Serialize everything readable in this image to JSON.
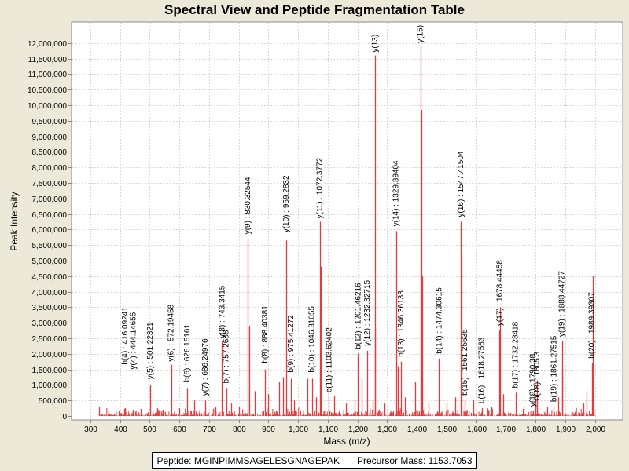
{
  "chart_data": {
    "type": "bar",
    "title": "Spectral View and Peptide Fragmentation Table",
    "xlabel": "Mass (m/z)",
    "ylabel": "Peak Intensity",
    "xlim": [
      255,
      2075
    ],
    "ylim": [
      0,
      12600000
    ],
    "xticks": [
      300,
      400,
      500,
      600,
      700,
      800,
      900,
      1000,
      1100,
      1200,
      1300,
      1400,
      1500,
      1600,
      1700,
      1800,
      1900,
      2000
    ],
    "xtick_labels": [
      "300",
      "400",
      "500",
      "600",
      "700",
      "800",
      "900",
      "1,000",
      "1,100",
      "1,200",
      "1,300",
      "1,400",
      "1,500",
      "1,600",
      "1,700",
      "1,800",
      "1,900",
      "2,000"
    ],
    "yticks": [
      0,
      500000,
      1000000,
      1500000,
      2000000,
      2500000,
      3000000,
      3500000,
      4000000,
      4500000,
      5000000,
      5500000,
      6000000,
      6500000,
      7000000,
      7500000,
      8000000,
      8500000,
      9000000,
      9500000,
      10000000,
      10500000,
      11000000,
      11500000,
      12000000
    ],
    "ytick_labels": [
      "0",
      "500,000",
      "1,000,000",
      "1,500,000",
      "2,000,000",
      "2,500,000",
      "3,000,000",
      "3,500,000",
      "4,000,000",
      "4,500,000",
      "5,000,000",
      "5,500,000",
      "6,000,000",
      "6,500,000",
      "7,000,000",
      "7,500,000",
      "8,000,000",
      "8,500,000",
      "9,000,000",
      "9,500,000",
      "10,000,000",
      "10,500,000",
      "11,000,000",
      "11,500,000",
      "12,000,000"
    ],
    "grid": true,
    "peak_color": "#e8393b",
    "peaks": [
      [
        328,
        300000
      ],
      [
        360,
        180000
      ],
      [
        395,
        150000
      ],
      [
        416.09,
        250000
      ],
      [
        444.15,
        200000
      ],
      [
        470,
        230000
      ],
      [
        501.22,
        1000000
      ],
      [
        525,
        250000
      ],
      [
        545,
        200000
      ],
      [
        572.19,
        1650000
      ],
      [
        600,
        250000
      ],
      [
        626.15,
        900000
      ],
      [
        650,
        500000
      ],
      [
        686.25,
        500000
      ],
      [
        720,
        300000
      ],
      [
        743.34,
        2400000
      ],
      [
        757.27,
        900000
      ],
      [
        775,
        400000
      ],
      [
        800,
        300000
      ],
      [
        830.33,
        5700000
      ],
      [
        835,
        2900000
      ],
      [
        855,
        800000
      ],
      [
        888.4,
        1500000
      ],
      [
        900,
        700000
      ],
      [
        935,
        1100000
      ],
      [
        948,
        1250000
      ],
      [
        959.28,
        5650000
      ],
      [
        975.41,
        1200000
      ],
      [
        985,
        500000
      ],
      [
        1030,
        1200000
      ],
      [
        1046.31,
        1200000
      ],
      [
        1060,
        600000
      ],
      [
        1072.38,
        6250000
      ],
      [
        1075,
        4800000
      ],
      [
        1103.62,
        600000
      ],
      [
        1120,
        650000
      ],
      [
        1160,
        400000
      ],
      [
        1190,
        500000
      ],
      [
        1201.46,
        2000000
      ],
      [
        1215,
        1200000
      ],
      [
        1232.33,
        2100000
      ],
      [
        1250,
        500000
      ],
      [
        1258.5,
        11600000
      ],
      [
        1260,
        2800000
      ],
      [
        1290,
        400000
      ],
      [
        1329.39,
        5950000
      ],
      [
        1335,
        1600000
      ],
      [
        1346.36,
        1750000
      ],
      [
        1360,
        600000
      ],
      [
        1395,
        1100000
      ],
      [
        1412,
        11900000
      ],
      [
        1415,
        9850000
      ],
      [
        1418,
        4500000
      ],
      [
        1440,
        400000
      ],
      [
        1474.31,
        1850000
      ],
      [
        1500,
        400000
      ],
      [
        1530,
        600000
      ],
      [
        1547.42,
        6250000
      ],
      [
        1550,
        5200000
      ],
      [
        1561.26,
        500000
      ],
      [
        1590,
        500000
      ],
      [
        1618.28,
        250000
      ],
      [
        1650,
        300000
      ],
      [
        1678.44,
        2750000
      ],
      [
        1680,
        3500000
      ],
      [
        1690,
        700000
      ],
      [
        1732.28,
        750000
      ],
      [
        1760,
        300000
      ],
      [
        1790.38,
        150000
      ],
      [
        1800,
        500000
      ],
      [
        1804,
        1150000
      ],
      [
        1840,
        300000
      ],
      [
        1861.28,
        300000
      ],
      [
        1875,
        600000
      ],
      [
        1888.45,
        2400000
      ],
      [
        1890,
        1500000
      ],
      [
        1960,
        400000
      ],
      [
        1972,
        800000
      ],
      [
        1989.39,
        1700000
      ],
      [
        1993,
        4500000
      ]
    ],
    "annotations": [
      {
        "mz": 416.09241,
        "label": "b(4) : 416.09241",
        "top": 1550000
      },
      {
        "mz": 444.14655,
        "label": "y(4) : 444.14655",
        "top": 1400000
      },
      {
        "mz": 501.22321,
        "label": "y(5) : 501.22321",
        "top": 1080000
      },
      {
        "mz": 572.19458,
        "label": "y(6) : 572.19458",
        "top": 1650000
      },
      {
        "mz": 626.15161,
        "label": "b(6) : 626.15161",
        "top": 1000000
      },
      {
        "mz": 686.24976,
        "label": "y(7) : 686.24976",
        "top": 550000
      },
      {
        "mz": 743.3415,
        "label": "y(8) : 743.3415",
        "top": 2400000
      },
      {
        "mz": 757.2688,
        "label": "b(7) : 757.2688",
        "top": 950000
      },
      {
        "mz": 830.32544,
        "label": "y(9) : 830.32544",
        "top": 5750000
      },
      {
        "mz": 888.40381,
        "label": "b(8) : 888.40381",
        "top": 1600000
      },
      {
        "mz": 959.2832,
        "label": "y(10) : 959.2832",
        "top": 5800000
      },
      {
        "mz": 975.41272,
        "label": "b(9) : 975.41272",
        "top": 1300000
      },
      {
        "mz": 1046.31055,
        "label": "b(10) : 1046.31055",
        "top": 1300000
      },
      {
        "mz": 1072.3772,
        "label": "y(11) : 1072.3772",
        "top": 6250000
      },
      {
        "mz": 1103.62402,
        "label": "b(11) : 1103.62402",
        "top": 650000
      },
      {
        "mz": 1201.46216,
        "label": "b(12) : 1201.46216",
        "top": 2050000
      },
      {
        "mz": 1232.32715,
        "label": "y(12) : 1232.32715",
        "top": 2150000
      },
      {
        "mz": 1258.5,
        "label": "y(13) :",
        "top": 11600000
      },
      {
        "mz": 1329.39404,
        "label": "y(14) : 1329.39404",
        "top": 6000000
      },
      {
        "mz": 1346.36133,
        "label": "b(13) : 1346.36133",
        "top": 1800000
      },
      {
        "mz": 1412.0,
        "label": "y(15)",
        "top": 11900000
      },
      {
        "mz": 1474.30615,
        "label": "b(14) : 1474.30615",
        "top": 1900000
      },
      {
        "mz": 1547.41504,
        "label": "y(16) : 1547.41504",
        "top": 6300000
      },
      {
        "mz": 1561.25635,
        "label": "b(15) : 1561.25635",
        "top": 560000
      },
      {
        "mz": 1618.27563,
        "label": "b(16) : 1618.27563",
        "top": 300000
      },
      {
        "mz": 1678.44458,
        "label": "y(17) : 1678.44458",
        "top": 2800000
      },
      {
        "mz": 1732.28418,
        "label": "b(17) : 1732.28418",
        "top": 800000
      },
      {
        "mz": 1790.38,
        "label": "y(18) : 1790.38",
        "top": 200000
      },
      {
        "mz": 1805.3,
        "label": "b(18) : 1805.3",
        "top": 400000
      },
      {
        "mz": 1861.27515,
        "label": "b(19) : 1861.27515",
        "top": 350000
      },
      {
        "mz": 1888.44727,
        "label": "y(19) : 1888.44727",
        "top": 2450000
      },
      {
        "mz": 1989.39307,
        "label": "b(20) : 1989.39307",
        "top": 1750000
      }
    ]
  },
  "footer": {
    "peptide": "Peptide: MGINPIMMSAGELESGNAGEPAK",
    "precursor": "Precursor Mass: 1153.7053"
  }
}
